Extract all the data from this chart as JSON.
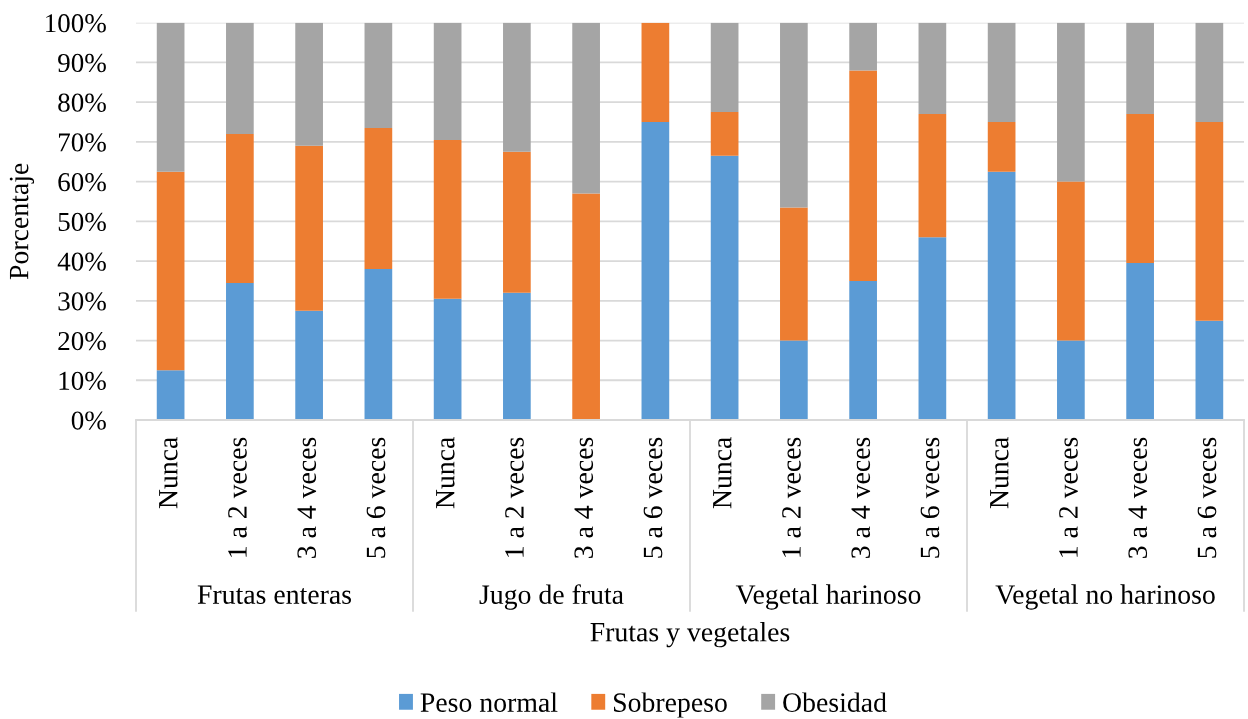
{
  "chart_data": {
    "type": "bar",
    "stacked": true,
    "xlabel": "Frutas y vegetales",
    "ylabel": "Porcentaje",
    "categories": [
      "Nunca",
      "1 a 2 veces",
      "3 a 4 veces",
      "5 a 6 veces",
      "Nunca",
      "1 a 2 veces",
      "3 a 4 veces",
      "5 a 6 veces",
      "Nunca",
      "1 a 2 veces",
      "3 a 4 veces",
      "5 a 6 veces",
      "Nunca",
      "1 a 2 veces",
      "3 a 4 veces",
      "5 a 6 veces"
    ],
    "annotations": [
      "Frutas enteras",
      "Jugo de fruta",
      "Vegetal harinoso",
      "Vegetal no harinoso"
    ],
    "series": [
      {
        "name": "Peso normal",
        "color": "#5b9bd5",
        "values": [
          12.5,
          34.5,
          27.5,
          38,
          30.5,
          32,
          0,
          75,
          66.5,
          20,
          35,
          46,
          62.5,
          20,
          39.5,
          25
        ]
      },
      {
        "name": "Sobrepeso",
        "color": "#ed7d31",
        "values": [
          50,
          37.5,
          41.5,
          35.5,
          40,
          35.5,
          57,
          25,
          11,
          33.5,
          53,
          31,
          12.5,
          40,
          37.5,
          50
        ]
      },
      {
        "name": "Obesidad",
        "color": "#a5a5a5",
        "values": [
          37.5,
          28,
          31,
          26.5,
          29.5,
          32.5,
          43,
          0,
          22.5,
          46.5,
          12,
          23,
          25,
          40,
          23,
          25
        ]
      }
    ],
    "ylim": [
      0,
      100
    ],
    "yticks": [
      {
        "value": 0,
        "label": "0%"
      },
      {
        "value": 10,
        "label": "10%"
      },
      {
        "value": 20,
        "label": "20%"
      },
      {
        "value": 30,
        "label": "30%"
      },
      {
        "value": 40,
        "label": "40%"
      },
      {
        "value": 50,
        "label": "50%"
      },
      {
        "value": 60,
        "label": "60%"
      },
      {
        "value": 70,
        "label": "70%"
      },
      {
        "value": 80,
        "label": "80%"
      },
      {
        "value": 90,
        "label": "90%"
      },
      {
        "value": 100,
        "label": "100%"
      }
    ],
    "grid": "y",
    "legend": "bottom"
  }
}
